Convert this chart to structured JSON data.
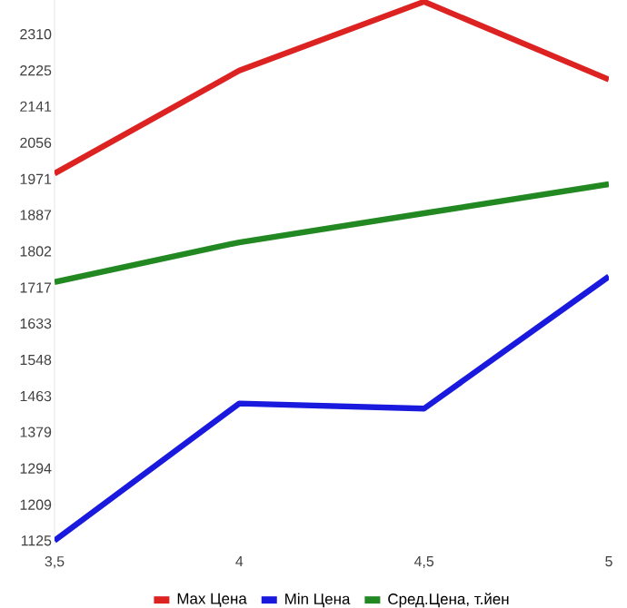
{
  "chart_data": {
    "type": "line",
    "x": [
      3.5,
      4,
      4.5,
      5
    ],
    "series": [
      {
        "name": "Max Цена",
        "color": "#dd2222",
        "values": [
          1984,
          2225,
          2386,
          2204
        ]
      },
      {
        "name": "Min Цена",
        "color": "#1a1adf",
        "values": [
          1125,
          1446,
          1434,
          1743
        ]
      },
      {
        "name": "Сред.Цена, т.йен",
        "color": "#228822",
        "values": [
          1730,
          1823,
          1891,
          1959
        ]
      }
    ],
    "xlim": [
      3.5,
      5
    ],
    "ylim": [
      1116,
      2390
    ],
    "xticks": [
      {
        "value": 3.5,
        "label": "3,5"
      },
      4,
      {
        "value": 4.5,
        "label": "4,5"
      },
      5
    ],
    "yticks": [
      1125,
      1209,
      1294,
      1379,
      1463,
      1548,
      1633,
      1717,
      1802,
      1887,
      1971,
      2056,
      2141,
      2225,
      2310
    ],
    "grid": false,
    "legend": "bottom",
    "marker": "none",
    "line_style": "solid"
  }
}
